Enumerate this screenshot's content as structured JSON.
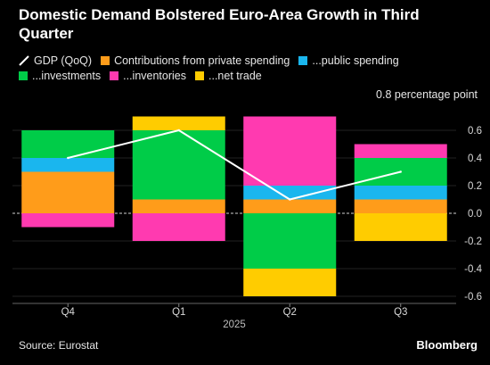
{
  "title": "Domestic Demand Bolstered Euro-Area Growth in Third Quarter",
  "unit_label": "0.8 percentage point",
  "source": "Source: Eurostat",
  "brand": "Bloomberg",
  "legend": {
    "gdp": {
      "label": "GDP (QoQ)",
      "color": "#ffffff"
    },
    "private": {
      "label": "Contributions from private spending",
      "color": "#ff9c1a"
    },
    "public": {
      "label": "...public spending",
      "color": "#1ab6ee"
    },
    "investments": {
      "label": "...investments",
      "color": "#00cc48"
    },
    "inventories": {
      "label": "...inventories",
      "color": "#ff3ab0"
    },
    "net_trade": {
      "label": "...net trade",
      "color": "#ffcc00"
    }
  },
  "chart_data": {
    "type": "bar",
    "stacked": true,
    "title": "Domestic Demand Bolstered Euro-Area Growth in Third Quarter",
    "categories": [
      "Q4",
      "Q1",
      "Q2",
      "Q3"
    ],
    "x_group_label": "2025",
    "ylabel": "0.8 percentage point",
    "ylim": [
      -0.6,
      0.7
    ],
    "yticks": [
      0.6,
      0.4,
      0.2,
      0.0,
      -0.2,
      -0.4,
      -0.6
    ],
    "ytick_labels": [
      "0.6",
      "0.4",
      "0.2",
      "0.0",
      "-0.2",
      "-0.4",
      "-0.6"
    ],
    "series": [
      {
        "name": "Contributions from private spending",
        "color": "#ff9c1a",
        "values": [
          0.3,
          0.1,
          0.1,
          0.1
        ]
      },
      {
        "name": "...public spending",
        "color": "#1ab6ee",
        "values": [
          0.1,
          0.0,
          0.1,
          0.1
        ]
      },
      {
        "name": "...investments",
        "color": "#00cc48",
        "values": [
          0.2,
          0.5,
          -0.4,
          0.2
        ]
      },
      {
        "name": "...inventories",
        "color": "#ff3ab0",
        "values": [
          -0.1,
          -0.2,
          0.5,
          0.1
        ]
      },
      {
        "name": "...net trade",
        "color": "#ffcc00",
        "values": [
          0.0,
          0.1,
          -0.2,
          -0.2
        ]
      }
    ],
    "line": {
      "name": "GDP (QoQ)",
      "color": "#ffffff",
      "values": [
        0.4,
        0.6,
        0.1,
        0.3
      ]
    }
  }
}
